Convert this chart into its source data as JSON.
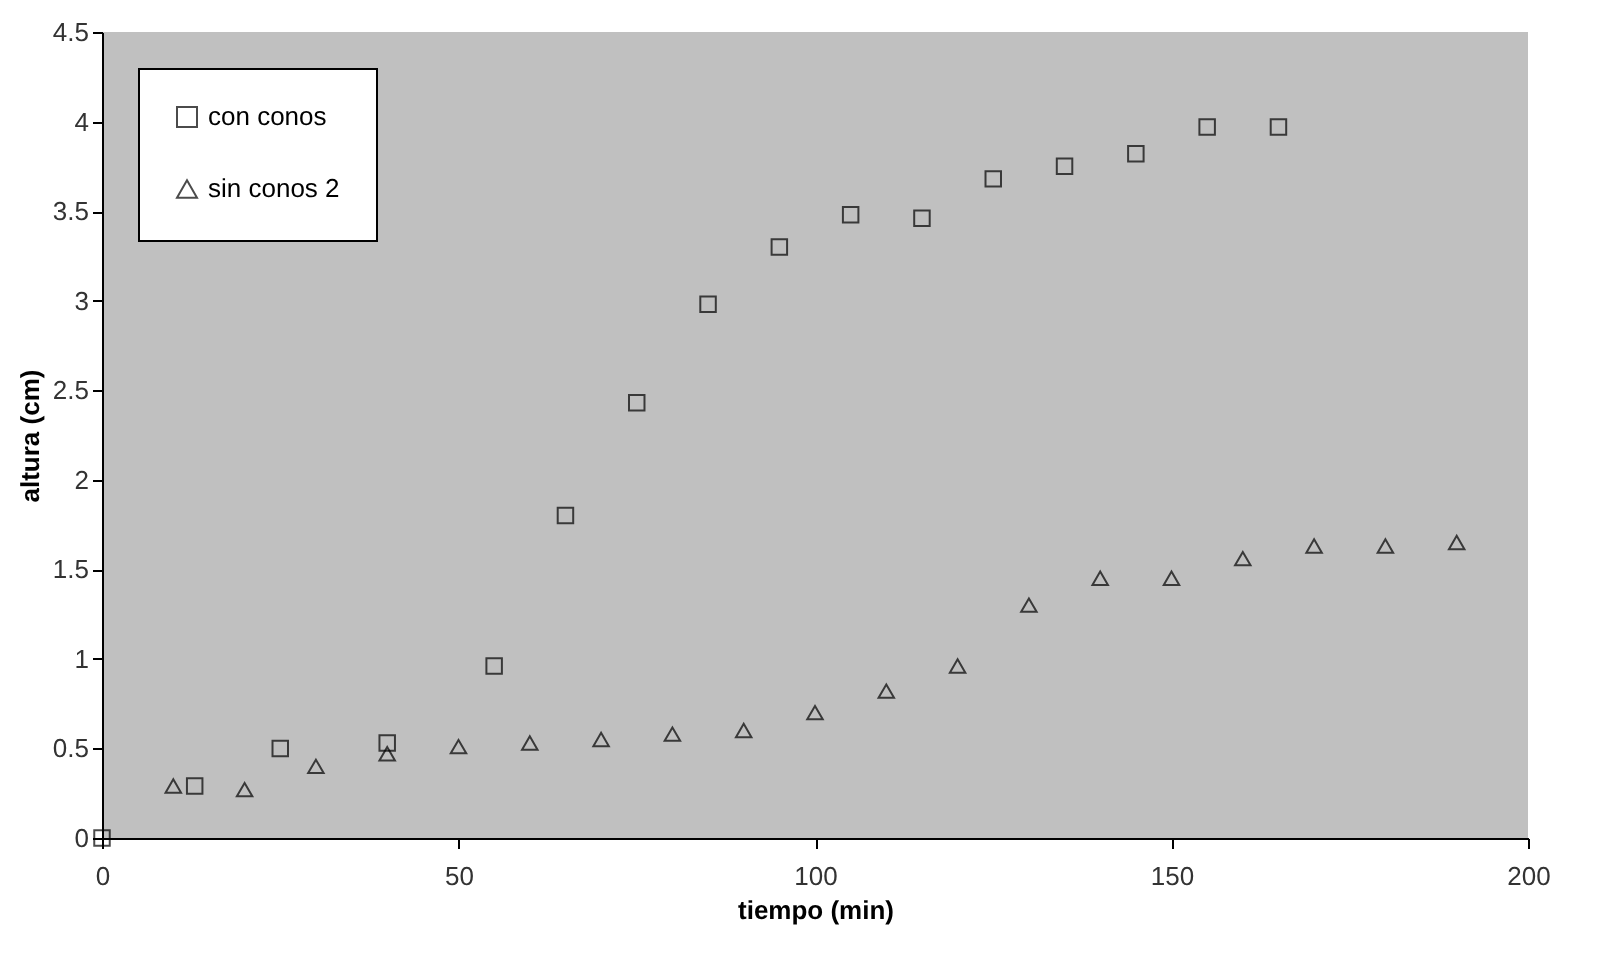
{
  "chart_data": {
    "type": "scatter",
    "xlabel": "tiempo (min)",
    "ylabel": "altura (cm)",
    "xlim": [
      0,
      200
    ],
    "xticks": [
      0,
      50,
      100,
      150,
      200
    ],
    "ylim": [
      0,
      4.5
    ],
    "yticks": [
      0,
      0.5,
      1,
      1.5,
      2,
      2.5,
      3,
      3.5,
      4,
      4.5
    ],
    "grid": false,
    "legend": "top left",
    "series": [
      {
        "name": "con conos",
        "color": "#000000",
        "marker": "square",
        "x": [
          0,
          13,
          25,
          40,
          55,
          65,
          75,
          85,
          95,
          105,
          115,
          125,
          135,
          145,
          155,
          165
        ],
        "values": [
          0,
          0.29,
          0.5,
          0.53,
          0.96,
          1.8,
          2.43,
          2.98,
          3.3,
          3.48,
          3.46,
          3.68,
          3.75,
          3.82,
          3.97,
          3.97
        ]
      },
      {
        "name": "sin conos 2",
        "color": "#000000",
        "marker": "triangle",
        "x": [
          10,
          20,
          30,
          40,
          50,
          60,
          70,
          80,
          90,
          100,
          110,
          120,
          130,
          140,
          150,
          160,
          170,
          180,
          190
        ],
        "values": [
          0.29,
          0.27,
          0.4,
          0.47,
          0.51,
          0.53,
          0.55,
          0.58,
          0.6,
          0.7,
          0.82,
          0.96,
          1.3,
          1.45,
          1.45,
          1.56,
          1.63,
          1.63,
          1.65
        ]
      }
    ]
  }
}
